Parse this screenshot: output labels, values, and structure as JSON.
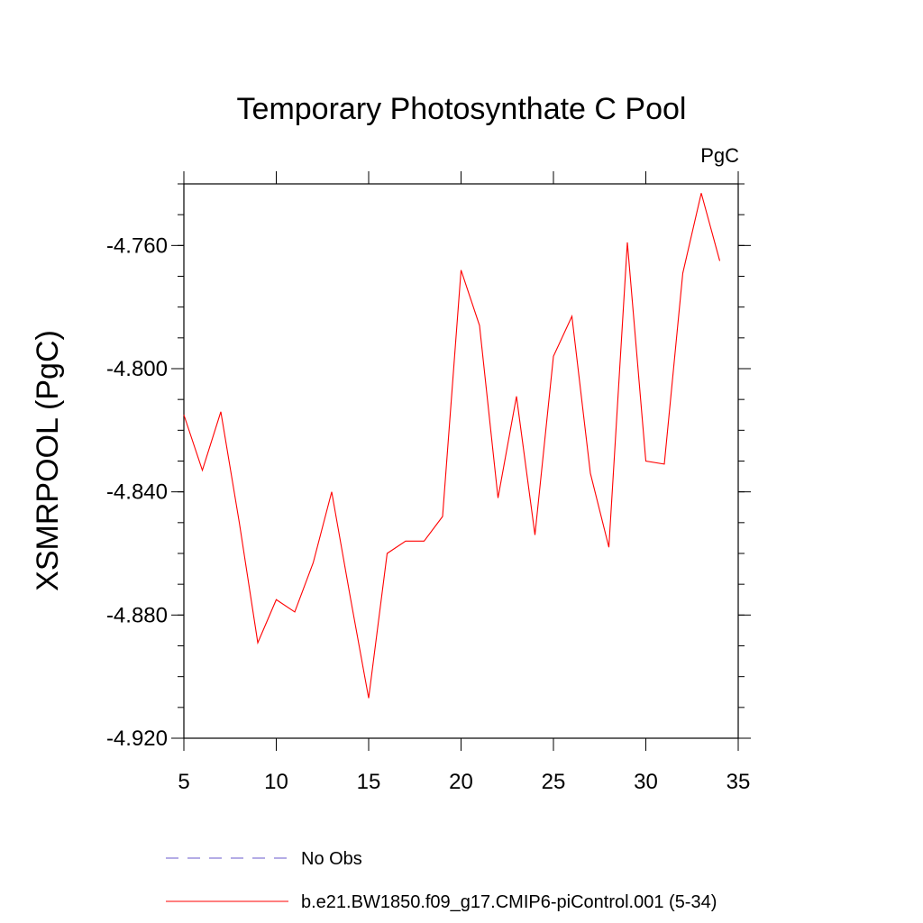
{
  "chart_data": {
    "type": "line",
    "title": "Temporary Photosynthate C Pool",
    "units": "PgC",
    "xlabel": "",
    "ylabel": "XSMRPOOL  (PgC)",
    "xlim": [
      5,
      35
    ],
    "ylim": [
      -4.92,
      -4.74
    ],
    "x_ticks": [
      5,
      10,
      15,
      20,
      25,
      30,
      35
    ],
    "x_tick_labels": [
      "5",
      "10",
      "15",
      "20",
      "25",
      "30",
      "35"
    ],
    "y_ticks": [
      -4.92,
      -4.88,
      -4.84,
      -4.8,
      -4.76
    ],
    "y_tick_labels": [
      "-4.920",
      "-4.880",
      "-4.840",
      "-4.800",
      "-4.760"
    ],
    "grid": false,
    "legend_position": "bottom",
    "series": [
      {
        "name": "No Obs",
        "color": "#6a5acd",
        "style": "dashed",
        "x": [],
        "y": []
      },
      {
        "name": "b.e21.BW1850.f09_g17.CMIP6-piControl.001 (5-34)",
        "color": "#ff0000",
        "style": "solid",
        "x": [
          5,
          6,
          7,
          8,
          9,
          10,
          11,
          12,
          13,
          14,
          15,
          16,
          17,
          18,
          19,
          20,
          21,
          22,
          23,
          24,
          25,
          26,
          27,
          28,
          29,
          30,
          31,
          32,
          33,
          34
        ],
        "y": [
          -4.815,
          -4.833,
          -4.814,
          -4.85,
          -4.889,
          -4.875,
          -4.879,
          -4.863,
          -4.84,
          -4.874,
          -4.907,
          -4.86,
          -4.856,
          -4.856,
          -4.848,
          -4.768,
          -4.786,
          -4.842,
          -4.809,
          -4.854,
          -4.796,
          -4.783,
          -4.834,
          -4.858,
          -4.759,
          -4.83,
          -4.831,
          -4.769,
          -4.743,
          -4.765
        ]
      }
    ]
  }
}
